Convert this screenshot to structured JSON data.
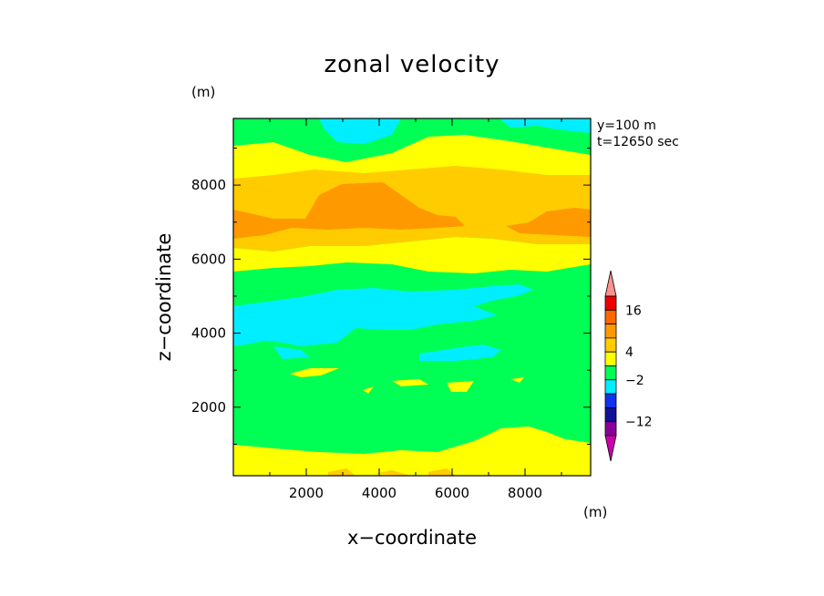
{
  "chart_data": {
    "type": "heatmap",
    "title": "zonal velocity",
    "xlabel": "x−coordinate",
    "ylabel": "z−coordinate",
    "y_unit": "(m)",
    "colorbar_unit": "(m)",
    "annotations": [
      "y=100 m",
      "t=12650 sec"
    ],
    "xlim": [
      0,
      9800
    ],
    "ylim": [
      150,
      9800
    ],
    "x_ticks": [
      2000,
      4000,
      6000,
      8000
    ],
    "y_ticks": [
      2000,
      4000,
      6000,
      8000
    ],
    "colorbar": {
      "levels": [
        -16,
        -12,
        -8,
        -4,
        -2,
        2,
        4,
        8,
        12,
        16
      ],
      "colors": [
        "#cc00aa",
        "#880099",
        "#111199",
        "#1133ee",
        "#00eeff",
        "#00ff55",
        "#ffff00",
        "#ffcc00",
        "#ff9900",
        "#ff6600",
        "#ee0000",
        "#ff9090"
      ],
      "tick_labels": [
        "16",
        "4",
        "−2",
        "−12"
      ],
      "tick_values": [
        16,
        4,
        -2,
        -12
      ]
    },
    "field_bands_by_z": [
      {
        "z_from": 150,
        "z_to": 900,
        "dominant_class": "yellow",
        "value_range": [
          2,
          4
        ]
      },
      {
        "z_from": 900,
        "z_to": 3000,
        "dominant_class": "green",
        "value_range": [
          -2,
          2
        ]
      },
      {
        "z_from": 3000,
        "z_to": 5200,
        "dominant_class": "cyan",
        "value_range": [
          -4,
          -2
        ]
      },
      {
        "z_from": 5200,
        "z_to": 5900,
        "dominant_class": "green",
        "value_range": [
          -2,
          2
        ]
      },
      {
        "z_from": 5900,
        "z_to": 6600,
        "dominant_class": "yellow",
        "value_range": [
          2,
          4
        ]
      },
      {
        "z_from": 6600,
        "z_to": 8300,
        "dominant_class": "orange",
        "value_range": [
          4,
          12
        ]
      },
      {
        "z_from": 8300,
        "z_to": 9300,
        "dominant_class": "yellow",
        "value_range": [
          2,
          4
        ]
      },
      {
        "z_from": 9300,
        "z_to": 9800,
        "dominant_class": "green",
        "value_range": [
          -2,
          2
        ]
      }
    ]
  }
}
